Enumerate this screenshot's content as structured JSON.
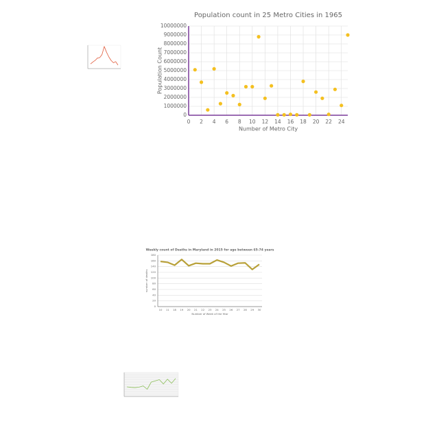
{
  "chart_data": [
    {
      "type": "scatter",
      "title": "Population count in 25 Metro Cities in 1965",
      "x_label": "Number of Metro City",
      "y_label": "Population Count",
      "x": [
        1,
        2,
        3,
        4,
        5,
        6,
        7,
        8,
        9,
        10,
        11,
        12,
        13,
        14,
        15,
        16,
        17,
        18,
        19,
        20,
        21,
        22,
        23,
        24,
        25
      ],
      "values": [
        5100000,
        3700000,
        600000,
        5200000,
        1300000,
        2500000,
        2200000,
        1200000,
        3200000,
        3200000,
        8800000,
        1900000,
        3300000,
        50000,
        50000,
        100000,
        50000,
        3800000,
        50000,
        2600000,
        1900000,
        100000,
        2900000,
        1100000,
        9000000
      ],
      "color": "#f4c020",
      "xlim": [
        0,
        25
      ],
      "xticks": [
        0,
        2,
        4,
        6,
        8,
        10,
        12,
        14,
        16,
        18,
        20,
        22,
        24
      ],
      "ylim": [
        0,
        10000000
      ],
      "yticks": [
        0,
        1000000,
        2000000,
        3000000,
        4000000,
        5000000,
        6000000,
        7000000,
        8000000,
        9000000,
        10000000
      ],
      "grid": true
    },
    {
      "type": "line",
      "title": "Weekly count of Deaths in Maryland in 2015 for age between 65-74 years",
      "x_label": "Number of Week of the Year",
      "y_label": "number of deaths",
      "categories": [
        "10",
        "11",
        "18",
        "19",
        "20",
        "21",
        "22",
        "23",
        "24",
        "25",
        "26",
        "27",
        "28",
        "29",
        "30"
      ],
      "values": [
        158,
        155,
        145,
        165,
        143,
        152,
        150,
        150,
        163,
        155,
        142,
        152,
        153,
        130,
        148
      ],
      "color": "#b8a038",
      "ylim": [
        0,
        180
      ],
      "yticks": [
        0,
        20,
        40,
        60,
        80,
        100,
        120,
        140,
        160,
        180
      ],
      "grid": true
    },
    {
      "type": "line",
      "values": [
        20,
        28,
        35,
        45,
        47,
        60,
        95,
        70,
        50,
        35,
        25,
        30,
        15
      ],
      "color": "#e05a3a",
      "ylim": [
        0,
        100
      ]
    },
    {
      "type": "line",
      "values": [
        40,
        38,
        37,
        39,
        44,
        30,
        60,
        65,
        70,
        52,
        72,
        55,
        75
      ],
      "color": "#8cbf5a",
      "ylim": [
        0,
        100
      ],
      "grid": true
    }
  ]
}
